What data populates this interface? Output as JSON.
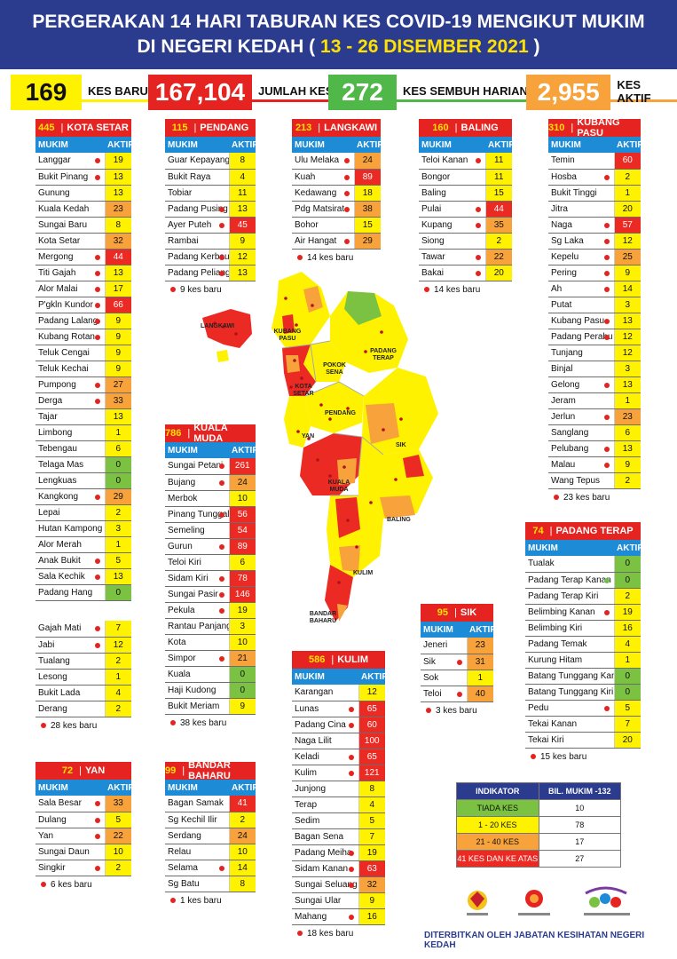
{
  "header": {
    "line1": "PERGERAKAN 14 HARI TABURAN KES COVID-19 MENGIKUT MUKIM",
    "line2a": "DI NEGERI KEDAH (",
    "line2b": "13 - 26 DISEMBER 2021",
    "line2c": ")"
  },
  "stats": {
    "kes_baru": {
      "value": "169",
      "label": "KES BARU",
      "color": "#fff200"
    },
    "jumlah_kes": {
      "value": "167,104",
      "label": "JUMLAH KES",
      "color": "#e52421"
    },
    "sembuh": {
      "value": "272",
      "label": "KES SEMBUH HARIAN",
      "color": "#4fb848"
    },
    "aktif": {
      "value": "2,955",
      "label": "KES AKTIF",
      "color": "#f7a23a"
    }
  },
  "colors": {
    "tiada_kes": "#7bc242",
    "k1_20": "#fff200",
    "k21_40": "#f7a23a",
    "k41_plus": "#ea2a23",
    "header_blue": "#2b3c8f",
    "panel_red": "#e52421",
    "table_blue": "#1e8bd6"
  },
  "col_mukim": "MUKIM",
  "col_aktif": "AKTIF",
  "districts": {
    "kota_setar": {
      "count": "445",
      "name": "KOTA SETAR",
      "footer": "28 kes baru",
      "rows": [
        [
          "Langgar",
          "19",
          1,
          1
        ],
        [
          "Bukit Pinang",
          "13",
          1,
          1
        ],
        [
          "Gunung",
          "13",
          0,
          1
        ],
        [
          "Kuala Kedah",
          "23",
          0,
          2
        ],
        [
          "Sungai Baru",
          "8",
          0,
          1
        ],
        [
          "Kota Setar",
          "32",
          0,
          2
        ],
        [
          "Mergong",
          "44",
          1,
          3
        ],
        [
          "Titi Gajah",
          "13",
          1,
          1
        ],
        [
          "Alor Malai",
          "17",
          1,
          1
        ],
        [
          "P'gkln Kundor",
          "66",
          1,
          3
        ],
        [
          "Padang Lalang",
          "9",
          1,
          1
        ],
        [
          "Kubang Rotan",
          "9",
          1,
          1
        ],
        [
          "Teluk Cengai",
          "9",
          0,
          1
        ],
        [
          "Teluk Kechai",
          "9",
          0,
          1
        ],
        [
          "Pumpong",
          "27",
          1,
          2
        ],
        [
          "Derga",
          "33",
          1,
          2
        ],
        [
          "Tajar",
          "13",
          0,
          1
        ],
        [
          "Limbong",
          "1",
          0,
          1
        ],
        [
          "Tebengau",
          "6",
          0,
          1
        ],
        [
          "Telaga Mas",
          "0",
          0,
          0
        ],
        [
          "Lengkuas",
          "0",
          0,
          0
        ],
        [
          "Kangkong",
          "29",
          1,
          2
        ],
        [
          "Lepai",
          "2",
          0,
          1
        ],
        [
          "Hutan Kampong",
          "3",
          0,
          1
        ],
        [
          "Alor Merah",
          "1",
          0,
          1
        ],
        [
          "Anak Bukit",
          "5",
          1,
          1
        ],
        [
          "Sala Kechik",
          "13",
          1,
          1
        ],
        [
          "Padang Hang",
          "0",
          0,
          0
        ]
      ],
      "rows2": [
        [
          "Gajah Mati",
          "7",
          1,
          1
        ],
        [
          "Jabi",
          "12",
          1,
          1
        ],
        [
          "Tualang",
          "2",
          0,
          1
        ],
        [
          "Lesong",
          "1",
          0,
          1
        ],
        [
          "Bukit Lada",
          "4",
          0,
          1
        ],
        [
          "Derang",
          "2",
          0,
          1
        ]
      ]
    },
    "pendang": {
      "count": "115",
      "name": "PENDANG",
      "footer": "9 kes baru",
      "rows": [
        [
          "Guar Kepayang",
          "8",
          0,
          1
        ],
        [
          "Bukit Raya",
          "4",
          0,
          1
        ],
        [
          "Tobiar",
          "11",
          0,
          1
        ],
        [
          "Padang Pusing",
          "13",
          1,
          1
        ],
        [
          "Ayer Puteh",
          "45",
          1,
          3
        ],
        [
          "Rambai",
          "9",
          0,
          1
        ],
        [
          "Padang Kerbau",
          "12",
          1,
          1
        ],
        [
          "Padang Peliang",
          "13",
          1,
          1
        ]
      ]
    },
    "langkawi": {
      "count": "213",
      "name": "LANGKAWI",
      "footer": "14 kes baru",
      "rows": [
        [
          "Ulu Melaka",
          "24",
          1,
          2
        ],
        [
          "Kuah",
          "89",
          1,
          3
        ],
        [
          "Kedawang",
          "18",
          1,
          1
        ],
        [
          "Pdg Matsirat",
          "38",
          1,
          2
        ],
        [
          "Bohor",
          "15",
          0,
          1
        ],
        [
          "Air Hangat",
          "29",
          1,
          2
        ]
      ]
    },
    "baling": {
      "count": "160",
      "name": "BALING",
      "footer": "14 kes baru",
      "rows": [
        [
          "Teloi Kanan",
          "11",
          1,
          1
        ],
        [
          "Bongor",
          "11",
          0,
          1
        ],
        [
          "Baling",
          "15",
          0,
          1
        ],
        [
          "Pulai",
          "44",
          1,
          3
        ],
        [
          "Kupang",
          "35",
          1,
          2
        ],
        [
          "Siong",
          "2",
          0,
          1
        ],
        [
          "Tawar",
          "22",
          1,
          2
        ],
        [
          "Bakai",
          "20",
          1,
          1
        ]
      ]
    },
    "kubang_pasu": {
      "count": "310",
      "name": "KUBANG PASU",
      "footer": "23 kes baru",
      "rows": [
        [
          "Temin",
          "60",
          0,
          3
        ],
        [
          "Hosba",
          "2",
          1,
          1
        ],
        [
          "Bukit Tinggi",
          "1",
          0,
          1
        ],
        [
          "Jitra",
          "20",
          0,
          1
        ],
        [
          "Naga",
          "57",
          1,
          3
        ],
        [
          "Sg Laka",
          "12",
          1,
          1
        ],
        [
          "Kepelu",
          "25",
          1,
          2
        ],
        [
          "Pering",
          "9",
          1,
          1
        ],
        [
          "Ah",
          "14",
          1,
          1
        ],
        [
          "Putat",
          "3",
          0,
          1
        ],
        [
          "Kubang Pasu",
          "13",
          1,
          1
        ],
        [
          "Padang Perahu",
          "12",
          1,
          1
        ],
        [
          "Tunjang",
          "12",
          0,
          1
        ],
        [
          "Binjal",
          "3",
          0,
          1
        ],
        [
          "Gelong",
          "13",
          1,
          1
        ],
        [
          "Jeram",
          "1",
          0,
          1
        ],
        [
          "Jerlun",
          "23",
          1,
          2
        ],
        [
          "Sanglang",
          "6",
          0,
          1
        ],
        [
          "Pelubang",
          "13",
          1,
          1
        ],
        [
          "Malau",
          "9",
          1,
          1
        ],
        [
          "Wang Tepus",
          "2",
          0,
          1
        ]
      ]
    },
    "kuala_muda": {
      "count": "786",
      "name": "KUALA MUDA",
      "footer": "38 kes baru",
      "rows": [
        [
          "Sungai Petani",
          "261",
          1,
          3
        ],
        [
          "Bujang",
          "24",
          1,
          2
        ],
        [
          "Merbok",
          "10",
          0,
          1
        ],
        [
          "Pinang Tunggal",
          "56",
          1,
          3
        ],
        [
          "Semeling",
          "54",
          0,
          3
        ],
        [
          "Gurun",
          "89",
          1,
          3
        ],
        [
          "Teloi Kiri",
          "6",
          0,
          1
        ],
        [
          "Sidam Kiri",
          "78",
          1,
          3
        ],
        [
          "Sungai Pasir",
          "146",
          1,
          3
        ],
        [
          "Pekula",
          "19",
          1,
          1
        ],
        [
          "Rantau Panjang",
          "3",
          0,
          1
        ],
        [
          "Kota",
          "10",
          0,
          1
        ],
        [
          "Simpor",
          "21",
          1,
          2
        ],
        [
          "Kuala",
          "0",
          0,
          0
        ],
        [
          "Haji Kudong",
          "0",
          0,
          0
        ],
        [
          "Bukit Meriam",
          "9",
          0,
          1
        ]
      ]
    },
    "padang_terap": {
      "count": "74",
      "name": "PADANG TERAP",
      "footer": "15 kes baru",
      "rows": [
        [
          "Tualak",
          "0",
          0,
          0
        ],
        [
          "Padang Terap Kanan",
          "0",
          2,
          0
        ],
        [
          "Padang Terap Kiri",
          "2",
          0,
          1
        ],
        [
          "Belimbing Kanan",
          "19",
          1,
          1
        ],
        [
          "Belimbing Kiri",
          "16",
          0,
          1
        ],
        [
          "Padang Temak",
          "4",
          0,
          1
        ],
        [
          "Kurung Hitam",
          "1",
          0,
          1
        ],
        [
          "Batang Tunggang Kanan",
          "0",
          0,
          0
        ],
        [
          "Batang Tunggang Kiri",
          "0",
          0,
          0
        ],
        [
          "Pedu",
          "5",
          1,
          1
        ],
        [
          "Tekai Kanan",
          "7",
          0,
          1
        ],
        [
          "Tekai Kiri",
          "20",
          0,
          1
        ]
      ]
    },
    "sik": {
      "count": "95",
      "name": "SIK",
      "footer": "3 kes baru",
      "rows": [
        [
          "Jeneri",
          "23",
          0,
          2
        ],
        [
          "Sik",
          "31",
          1,
          2
        ],
        [
          "Sok",
          "1",
          0,
          1
        ],
        [
          "Teloi",
          "40",
          1,
          2
        ]
      ]
    },
    "kulim": {
      "count": "586",
      "name": "KULIM",
      "footer": "18 kes baru",
      "rows": [
        [
          "Karangan",
          "12",
          0,
          1
        ],
        [
          "Lunas",
          "65",
          1,
          3
        ],
        [
          "Padang Cina",
          "60",
          1,
          3
        ],
        [
          "Naga Lilit",
          "100",
          0,
          3
        ],
        [
          "Keladi",
          "65",
          1,
          3
        ],
        [
          "Kulim",
          "121",
          1,
          3
        ],
        [
          "Junjong",
          "8",
          0,
          1
        ],
        [
          "Terap",
          "4",
          0,
          1
        ],
        [
          "Sedim",
          "5",
          0,
          1
        ],
        [
          "Bagan Sena",
          "7",
          0,
          1
        ],
        [
          "Padang Meiha",
          "19",
          1,
          1
        ],
        [
          "Sidam Kanan",
          "63",
          1,
          3
        ],
        [
          "Sungai Seluang",
          "32",
          1,
          2
        ],
        [
          "Sungai Ular",
          "9",
          0,
          1
        ],
        [
          "Mahang",
          "16",
          1,
          1
        ]
      ]
    },
    "yan": {
      "count": "72",
      "name": "YAN",
      "footer": "6 kes baru",
      "rows": [
        [
          "Sala Besar",
          "33",
          1,
          2
        ],
        [
          "Dulang",
          "5",
          1,
          1
        ],
        [
          "Yan",
          "22",
          1,
          2
        ],
        [
          "Sungai Daun",
          "10",
          0,
          1
        ],
        [
          "Singkir",
          "2",
          1,
          1
        ]
      ]
    },
    "bandar_baharu": {
      "count": "99",
      "name": "BANDAR BAHARU",
      "footer": "1 kes baru",
      "rows": [
        [
          "Bagan Samak",
          "41",
          0,
          3
        ],
        [
          "Sg Kechil Ilir",
          "2",
          0,
          1
        ],
        [
          "Serdang",
          "24",
          0,
          2
        ],
        [
          "Relau",
          "10",
          0,
          1
        ],
        [
          "Selama",
          "14",
          1,
          1
        ],
        [
          "Sg Batu",
          "8",
          0,
          1
        ]
      ]
    }
  },
  "legend": {
    "col1": "INDIKATOR",
    "col2": "BIL. MUKIM -132",
    "rows": [
      [
        "TIADA KES",
        "10"
      ],
      [
        "1 - 20 KES",
        "78"
      ],
      [
        "21 - 40 KES",
        "17"
      ],
      [
        "41 KES DAN KE ATAS",
        "27"
      ]
    ]
  },
  "map_labels": {
    "langkawi": "LANGKAWI",
    "kubang_pasu": "KUBANG PASU",
    "pokok_sena": "POKOK SENA",
    "padang_terap": "PADANG TERAP",
    "kota_setar": "KOTA SETAR",
    "pendang": "PENDANG",
    "yan": "YAN",
    "sik": "SIK",
    "kuala_muda": "KUALA MUDA",
    "baling": "BALING",
    "kulim": "KULIM",
    "bandar_baharu": "BANDAR BAHARU"
  },
  "publisher": "DITERBITKAN OLEH JABATAN KESIHATAN NEGERI KEDAH"
}
